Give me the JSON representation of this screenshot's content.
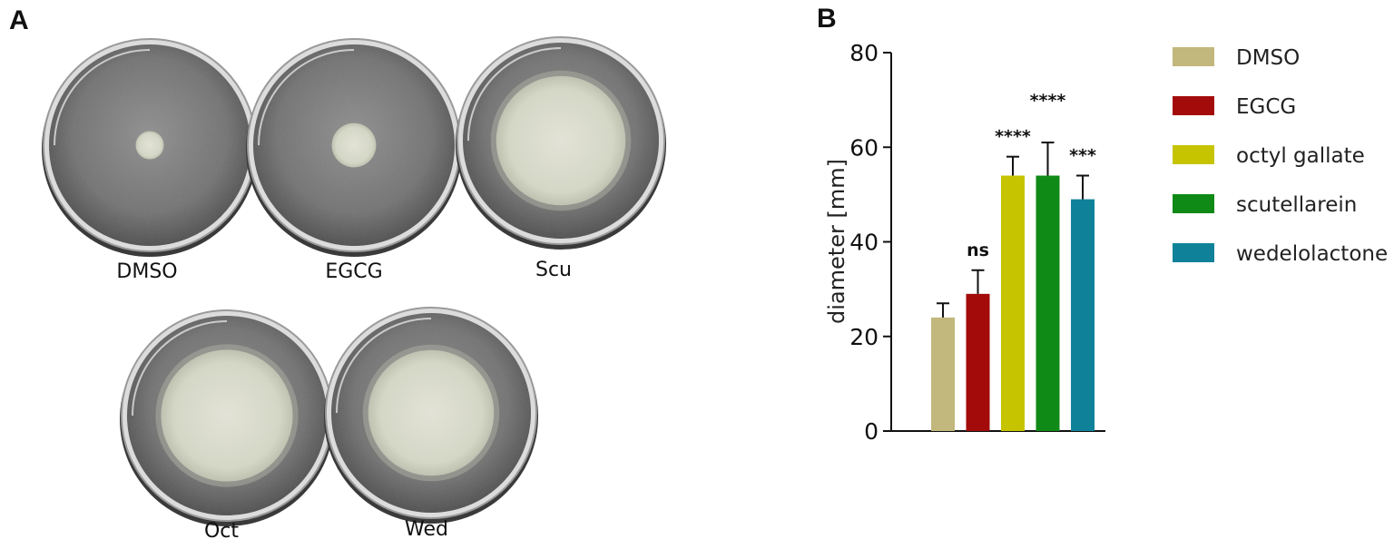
{
  "panels": {
    "a": {
      "letter": "A",
      "plates": [
        {
          "label": "DMSO",
          "colony_size": 0.14
        },
        {
          "label": "EGCG",
          "colony_size": 0.22
        },
        {
          "label": "Scu",
          "colony_size": 0.66
        },
        {
          "label": "Oct",
          "colony_size": 0.66
        },
        {
          "label": "Wed",
          "colony_size": 0.63
        }
      ]
    },
    "b": {
      "letter": "B"
    }
  },
  "colors": {
    "DMSO": "#c2b77c",
    "EGCG": "#a30a0a",
    "octyl gallate": "#c6c400",
    "scutellarein": "#0f8a17",
    "wedelolactone": "#0f8299"
  },
  "chart_data": {
    "type": "bar",
    "title": "",
    "xlabel": "",
    "ylabel": "diameter [mm]",
    "ylim": [
      0,
      80
    ],
    "yticks": [
      0,
      20,
      40,
      60,
      80
    ],
    "grid": false,
    "legend_position": "right",
    "series": [
      {
        "name": "DMSO",
        "value": 24,
        "error": 3,
        "significance": ""
      },
      {
        "name": "EGCG",
        "value": 29,
        "error": 5,
        "significance": "ns"
      },
      {
        "name": "octyl gallate",
        "value": 54,
        "error": 4,
        "significance": "****"
      },
      {
        "name": "scutellarein",
        "value": 54,
        "error": 7,
        "significance": "****"
      },
      {
        "name": "wedelolactone",
        "value": 49,
        "error": 5,
        "significance": "***"
      }
    ]
  }
}
